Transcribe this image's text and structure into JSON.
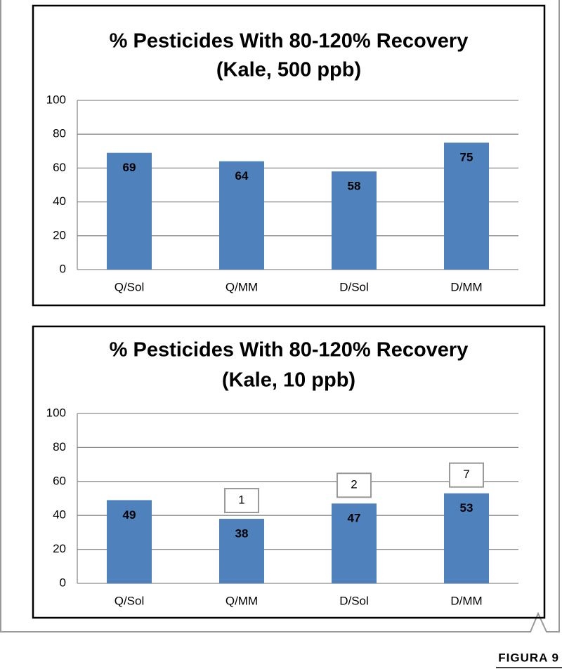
{
  "chart_data": [
    {
      "type": "bar",
      "title": "% Pesticides With 80-120% Recovery",
      "subtitle": "(Kale, 500 ppb)",
      "categories": [
        "Q/Sol",
        "Q/MM",
        "D/Sol",
        "D/MM"
      ],
      "values": [
        69,
        64,
        58,
        75
      ],
      "color": "#4f81bd",
      "ylim": [
        0,
        100
      ],
      "yticks": [
        0,
        20,
        40,
        60,
        80,
        100
      ],
      "grid": true
    },
    {
      "type": "bar",
      "title": "% Pesticides With 80-120% Recovery",
      "subtitle": "(Kale, 10 ppb)",
      "categories": [
        "Q/Sol",
        "Q/MM",
        "D/Sol",
        "D/MM"
      ],
      "values": [
        49,
        38,
        47,
        53
      ],
      "color": "#4f81bd",
      "ylim": [
        0,
        100
      ],
      "yticks": [
        0,
        20,
        40,
        60,
        80,
        100
      ],
      "grid": true,
      "annotations": [
        {
          "category": "Q/MM",
          "text": "1"
        },
        {
          "category": "D/Sol",
          "text": "2"
        },
        {
          "category": "D/MM",
          "text": "7"
        }
      ]
    }
  ],
  "figure_label": "FIGURA 9"
}
